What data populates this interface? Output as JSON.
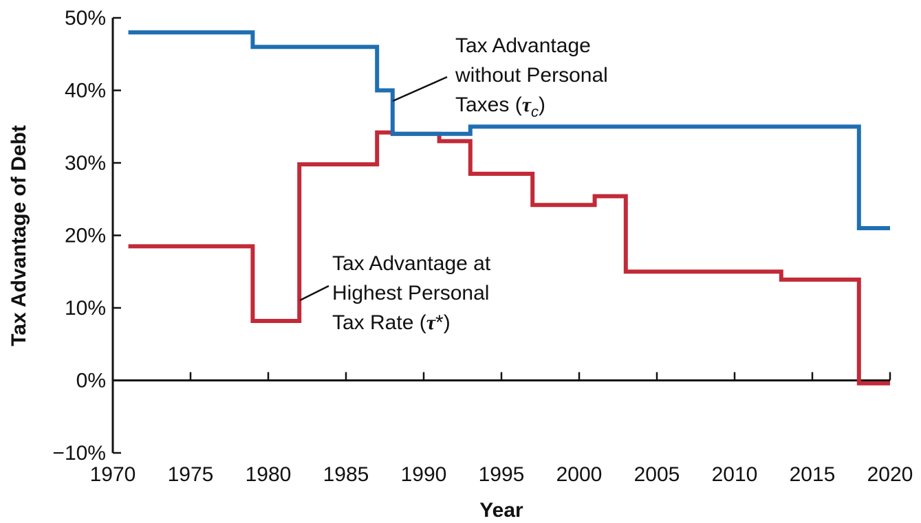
{
  "chart_data": {
    "type": "line",
    "step": true,
    "title": "",
    "xlabel": "Year",
    "ylabel": "Tax Advantage of Debt",
    "xlim": [
      1970,
      2020
    ],
    "ylim": [
      -10,
      50
    ],
    "x_ticks": [
      1970,
      1975,
      1980,
      1985,
      1990,
      1995,
      2000,
      2005,
      2010,
      2015,
      2020
    ],
    "x_tick_labels": [
      "1970",
      "1975",
      "1980",
      "1985",
      "1990",
      "1995",
      "2000",
      "2005",
      "2010",
      "2015",
      "2020"
    ],
    "y_ticks": [
      -10,
      0,
      10,
      20,
      30,
      40,
      50
    ],
    "y_tick_labels": [
      "−10%",
      "0%",
      "10%",
      "20%",
      "30%",
      "40%",
      "50%"
    ],
    "grid": false,
    "series": [
      {
        "name": "Tax Advantage without Personal Taxes (τc)",
        "color": "#1f6fb2",
        "x": [
          1971,
          1979,
          1987,
          1988,
          1991,
          1993,
          2018,
          2020
        ],
        "y": [
          48,
          46,
          40,
          34,
          34,
          35,
          21,
          21
        ]
      },
      {
        "name": "Tax Advantage at Highest Personal Tax Rate (τ*)",
        "color": "#c22a38",
        "x": [
          1971,
          1979,
          1982,
          1987,
          1988,
          1991,
          1993,
          1997,
          2001,
          2003,
          2013,
          2018,
          2020
        ],
        "y": [
          18.5,
          8.2,
          29.8,
          34.2,
          34,
          33,
          28.5,
          24.2,
          25.4,
          15,
          13.9,
          -0.4,
          -0.4
        ]
      }
    ],
    "annotations": [
      {
        "series": 0,
        "lines": [
          "Tax Advantage",
          "without Personal",
          "Taxes ("
        ],
        "symbol": "τ",
        "subscript": "c",
        "close": ")",
        "pointer_x": 1988,
        "pointer_y": 38
      },
      {
        "series": 1,
        "lines": [
          "Tax Advantage at",
          "Highest Personal",
          "Tax Rate ("
        ],
        "symbol": "τ",
        "superscript": "*",
        "close": ")",
        "pointer_x": 1982,
        "pointer_y": 11.5
      }
    ]
  }
}
